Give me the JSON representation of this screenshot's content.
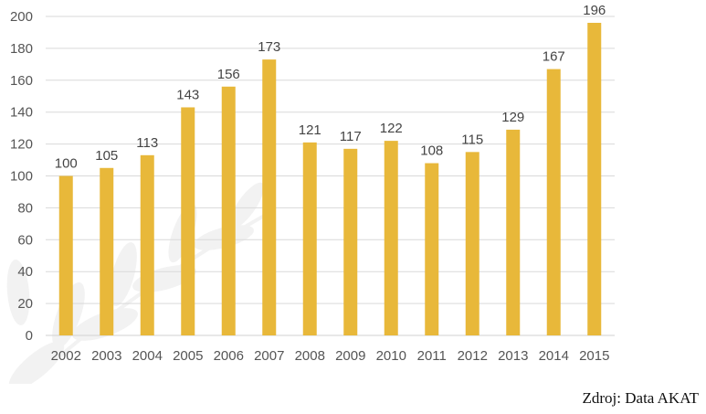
{
  "chart_data": {
    "type": "bar",
    "categories": [
      "2002",
      "2003",
      "2004",
      "2005",
      "2006",
      "2007",
      "2008",
      "2009",
      "2010",
      "2011",
      "2012",
      "2013",
      "2014",
      "2015"
    ],
    "values": [
      100,
      105,
      113,
      143,
      156,
      173,
      121,
      117,
      122,
      108,
      115,
      129,
      167,
      196
    ],
    "ylim": [
      0,
      200
    ],
    "yticks": [
      0,
      20,
      40,
      60,
      80,
      100,
      120,
      140,
      160,
      180,
      200
    ],
    "grid": true,
    "bar_color": "#E8B83A",
    "grid_color": "#D9D9D9",
    "title": "",
    "xlabel": "",
    "ylabel": ""
  },
  "source": "Zdroj: Data AKAT"
}
